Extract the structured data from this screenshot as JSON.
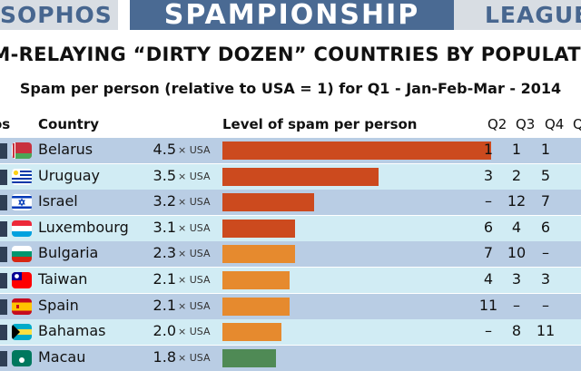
{
  "banner": {
    "left": "SOPHOS",
    "center": "SPAMPIONSHIP",
    "right": "LEAGUE"
  },
  "chart_data": {
    "type": "bar",
    "title": "AM-RELAYING “DIRTY DOZEN” COUNTRIES BY POPULATIO",
    "subtitle": "Spam per person (relative to USA = 1) for Q1 - Jan-Feb-Mar - 2014",
    "headers": {
      "pos": "os",
      "country": "Country",
      "level": "Level of spam per person",
      "q2": "Q2",
      "q3": "Q3",
      "q4": "Q4",
      "q5": "Q"
    },
    "unit_label": "× USA",
    "categories": [
      "Belarus",
      "Uruguay",
      "Israel",
      "Luxembourg",
      "Bulgaria",
      "Taiwan",
      "Spain",
      "Bahamas",
      "Macau"
    ],
    "values": [
      4.5,
      3.5,
      3.2,
      3.1,
      2.3,
      2.1,
      2.1,
      2.0,
      1.8
    ],
    "value_labels": [
      "4.5",
      "3.5",
      "3.2",
      "3.1",
      "2.3",
      "2.1",
      "2.1",
      "2.0",
      "1.8"
    ],
    "bar_lengths_relative": [
      1.0,
      0.58,
      0.34,
      0.27,
      0.27,
      0.25,
      0.25,
      0.22,
      0.2
    ],
    "bar_colors": [
      "#cc4a1e",
      "#cc4a1e",
      "#cc4a1e",
      "#cc4a1e",
      "#e68a2e",
      "#e68a2e",
      "#e68a2e",
      "#e68a2e",
      "#4f8a55"
    ],
    "previous_ranks": {
      "Q2": [
        "1",
        "3",
        "–",
        "6",
        "7",
        "4",
        "11",
        "–",
        ""
      ],
      "Q3": [
        "1",
        "2",
        "12",
        "4",
        "10",
        "3",
        "–",
        "8",
        ""
      ],
      "Q4": [
        "1",
        "5",
        "7",
        "6",
        "–",
        "3",
        "–",
        "11",
        ""
      ]
    },
    "flags": [
      "belarus-flag",
      "uruguay-flag",
      "israel-flag",
      "luxembourg-flag",
      "bulgaria-flag",
      "taiwan-flag",
      "spain-flag",
      "bahamas-flag",
      "macau-flag"
    ]
  }
}
